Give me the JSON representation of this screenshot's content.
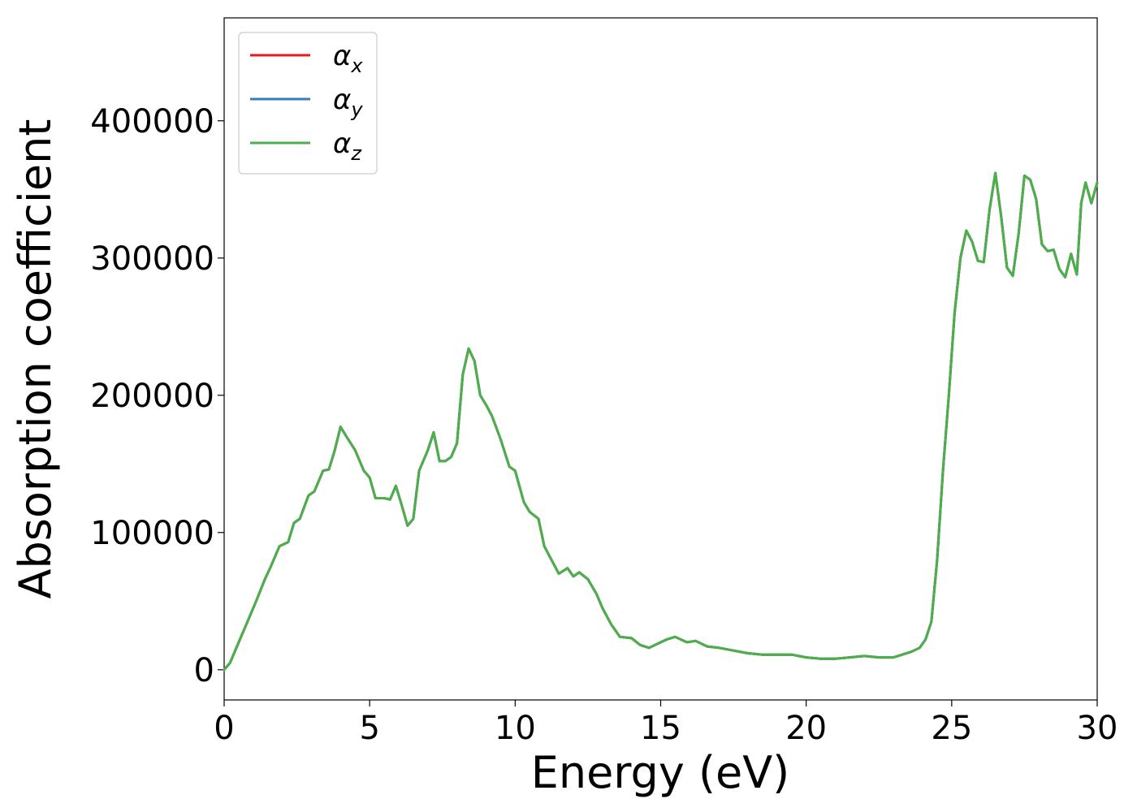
{
  "chart_data": {
    "type": "line",
    "xlabel": "Energy (eV)",
    "ylabel": "Absorption coefficient",
    "xlim": [
      0,
      30
    ],
    "ylim": [
      -22000,
      475000
    ],
    "xticks": [
      0,
      5,
      10,
      15,
      20,
      25,
      30
    ],
    "xtick_labels": [
      "0",
      "5",
      "10",
      "15",
      "20",
      "25",
      "30"
    ],
    "yticks": [
      0,
      100000,
      200000,
      300000,
      400000
    ],
    "ytick_labels": [
      "0",
      "100000",
      "200000",
      "300000",
      "400000"
    ],
    "grid": false,
    "legend_position": "top-left",
    "x": [
      0,
      0.2,
      0.5,
      0.8,
      1.1,
      1.4,
      1.6,
      1.9,
      2.2,
      2.4,
      2.6,
      2.9,
      3.1,
      3.4,
      3.6,
      3.8,
      4.0,
      4.2,
      4.5,
      4.8,
      5.0,
      5.2,
      5.5,
      5.7,
      5.9,
      6.1,
      6.3,
      6.5,
      6.7,
      7.0,
      7.2,
      7.4,
      7.6,
      7.8,
      8.0,
      8.2,
      8.4,
      8.6,
      8.8,
      9.0,
      9.2,
      9.5,
      9.8,
      10.0,
      10.3,
      10.5,
      10.8,
      11.0,
      11.2,
      11.5,
      11.8,
      12.0,
      12.2,
      12.5,
      12.8,
      13.0,
      13.3,
      13.6,
      14.0,
      14.3,
      14.6,
      15.0,
      15.2,
      15.5,
      15.9,
      16.2,
      16.6,
      17.0,
      17.5,
      18.0,
      18.5,
      19.0,
      19.5,
      20.0,
      20.5,
      21.0,
      21.5,
      22.0,
      22.5,
      23.0,
      23.3,
      23.6,
      23.9,
      24.1,
      24.3,
      24.5,
      24.7,
      24.9,
      25.1,
      25.3,
      25.5,
      25.7,
      25.9,
      26.1,
      26.3,
      26.5,
      26.7,
      26.9,
      27.1,
      27.3,
      27.5,
      27.7,
      27.9,
      28.1,
      28.3,
      28.5,
      28.7,
      28.9,
      29.1,
      29.3,
      29.45,
      29.6,
      29.8,
      30.0
    ],
    "series": [
      {
        "name": "α_x",
        "color": "#e41a1c",
        "values": [
          0,
          5000,
          20000,
          35000,
          50000,
          66000,
          75000,
          90000,
          93000,
          107000,
          110000,
          127000,
          130000,
          145000,
          146000,
          160000,
          177000,
          170000,
          160000,
          145000,
          140000,
          125000,
          125000,
          124000,
          134000,
          120000,
          105000,
          110000,
          145000,
          160000,
          173000,
          152000,
          152000,
          155000,
          165000,
          215000,
          234000,
          225000,
          200000,
          193000,
          185000,
          168000,
          148000,
          145000,
          122000,
          115000,
          110000,
          90000,
          82000,
          70000,
          74000,
          68000,
          71000,
          66000,
          55000,
          45000,
          33000,
          24000,
          23000,
          18000,
          16000,
          20000,
          22000,
          24000,
          20000,
          21000,
          17000,
          16000,
          14000,
          12000,
          11000,
          11000,
          11000,
          9000,
          8000,
          8000,
          9000,
          10000,
          9000,
          9000,
          11000,
          13000,
          16000,
          22000,
          35000,
          80000,
          145000,
          200000,
          260000,
          300000,
          320000,
          312000,
          298000,
          297000,
          335000,
          362000,
          330000,
          293000,
          287000,
          318000,
          360000,
          357000,
          343000,
          310000,
          305000,
          306000,
          292000,
          286000,
          303000,
          288000,
          340000,
          355000,
          340000,
          355000
        ]
      },
      {
        "name": "α_y",
        "color": "#377eb8",
        "values": [
          0,
          5000,
          20000,
          35000,
          50000,
          66000,
          75000,
          90000,
          93000,
          107000,
          110000,
          127000,
          130000,
          145000,
          146000,
          160000,
          177000,
          170000,
          160000,
          145000,
          140000,
          125000,
          125000,
          124000,
          134000,
          120000,
          105000,
          110000,
          145000,
          160000,
          173000,
          152000,
          152000,
          155000,
          165000,
          215000,
          234000,
          225000,
          200000,
          193000,
          185000,
          168000,
          148000,
          145000,
          122000,
          115000,
          110000,
          90000,
          82000,
          70000,
          74000,
          68000,
          71000,
          66000,
          55000,
          45000,
          33000,
          24000,
          23000,
          18000,
          16000,
          20000,
          22000,
          24000,
          20000,
          21000,
          17000,
          16000,
          14000,
          12000,
          11000,
          11000,
          11000,
          9000,
          8000,
          8000,
          9000,
          10000,
          9000,
          9000,
          11000,
          13000,
          16000,
          22000,
          35000,
          80000,
          145000,
          200000,
          260000,
          300000,
          320000,
          312000,
          298000,
          297000,
          335000,
          362000,
          330000,
          293000,
          287000,
          318000,
          360000,
          357000,
          343000,
          310000,
          305000,
          306000,
          292000,
          286000,
          303000,
          288000,
          340000,
          355000,
          340000,
          355000
        ]
      },
      {
        "name": "α_z",
        "color": "#4daf4a",
        "values": [
          0,
          5000,
          20000,
          35000,
          50000,
          66000,
          75000,
          90000,
          93000,
          107000,
          110000,
          127000,
          130000,
          145000,
          146000,
          160000,
          177000,
          170000,
          160000,
          145000,
          140000,
          125000,
          125000,
          124000,
          134000,
          120000,
          105000,
          110000,
          145000,
          160000,
          173000,
          152000,
          152000,
          155000,
          165000,
          215000,
          234000,
          225000,
          200000,
          193000,
          185000,
          168000,
          148000,
          145000,
          122000,
          115000,
          110000,
          90000,
          82000,
          70000,
          74000,
          68000,
          71000,
          66000,
          55000,
          45000,
          33000,
          24000,
          23000,
          18000,
          16000,
          20000,
          22000,
          24000,
          20000,
          21000,
          17000,
          16000,
          14000,
          12000,
          11000,
          11000,
          11000,
          9000,
          8000,
          8000,
          9000,
          10000,
          9000,
          9000,
          11000,
          13000,
          16000,
          22000,
          35000,
          80000,
          145000,
          200000,
          260000,
          300000,
          320000,
          312000,
          298000,
          297000,
          335000,
          362000,
          330000,
          293000,
          287000,
          318000,
          360000,
          357000,
          343000,
          310000,
          305000,
          306000,
          292000,
          286000,
          303000,
          288000,
          340000,
          355000,
          340000,
          355000
        ]
      }
    ],
    "legend": [
      {
        "symbol": "α",
        "subscript": "x",
        "color": "#e41a1c"
      },
      {
        "symbol": "α",
        "subscript": "y",
        "color": "#377eb8"
      },
      {
        "symbol": "α",
        "subscript": "z",
        "color": "#4daf4a"
      }
    ]
  }
}
